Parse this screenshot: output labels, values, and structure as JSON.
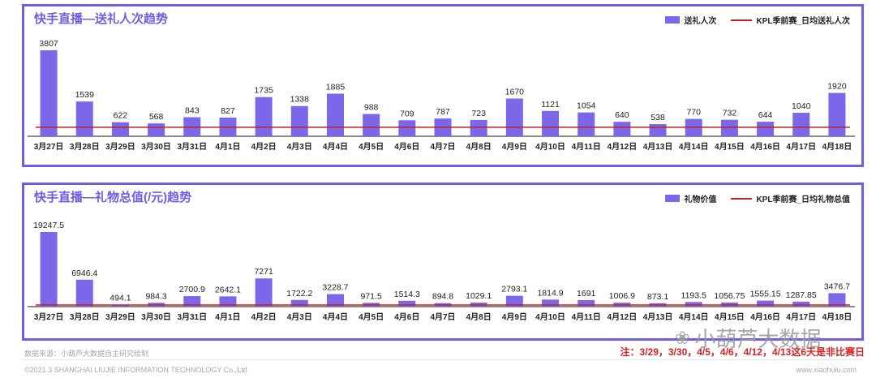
{
  "colors": {
    "bar": "#7a67ea",
    "line": "#c71f1f",
    "frame": "#6f5de8"
  },
  "chart_data": [
    {
      "type": "bar",
      "title": "快手直播—送礼人次趋势",
      "categories": [
        "3月27日",
        "3月28日",
        "3月29日",
        "3月30日",
        "3月31日",
        "4月1日",
        "4月2日",
        "4月3日",
        "4月4日",
        "4月5日",
        "4月6日",
        "4月7日",
        "4月8日",
        "4月9日",
        "4月10日",
        "4月11日",
        "4月12日",
        "4月13日",
        "4月14日",
        "4月15日",
        "4月16日",
        "4月17日",
        "4月18日"
      ],
      "series": [
        {
          "name": "送礼人次",
          "values": [
            3807,
            1539,
            622,
            568,
            843,
            827,
            1735,
            1338,
            1885,
            988,
            709,
            787,
            723,
            1670,
            1121,
            1054,
            640,
            538,
            770,
            732,
            644,
            1040,
            1920
          ]
        }
      ],
      "reference_line": {
        "name": "KPL季前赛_日均送礼人次",
        "value": 400
      },
      "value_labels": [
        "3807",
        "1539",
        "622",
        "568",
        "843",
        "827",
        "1735",
        "1338",
        "1885",
        "988",
        "709",
        "787",
        "723",
        "1670",
        "1121",
        "1054",
        "640",
        "538",
        "770",
        "732",
        "644",
        "1040",
        "1920"
      ],
      "legend": "top-right"
    },
    {
      "type": "bar",
      "title": "快手直播—礼物总值(/元)趋势",
      "categories": [
        "3月27日",
        "3月28日",
        "3月29日",
        "3月30日",
        "3月31日",
        "4月1日",
        "4月2日",
        "4月3日",
        "4月4日",
        "4月5日",
        "4月6日",
        "4月7日",
        "4月8日",
        "4月9日",
        "4月10日",
        "4月11日",
        "4月12日",
        "4月13日",
        "4月14日",
        "4月15日",
        "4月16日",
        "4月17日",
        "4月18日"
      ],
      "series": [
        {
          "name": "礼物价值",
          "values": [
            19247.5,
            6946.4,
            494.1,
            984.3,
            2700.9,
            2642.1,
            7271,
            1722.2,
            3228.7,
            971.5,
            1514.3,
            894.8,
            1029.1,
            2793.1,
            1814.9,
            1691,
            1006.9,
            873.1,
            1193.5,
            1056.75,
            1555.15,
            1287.85,
            3476.7
          ]
        }
      ],
      "reference_line": {
        "name": "KPL季前赛_日均礼物总值",
        "value": 400
      },
      "value_labels": [
        "19247.5",
        "6946.4",
        "494.1",
        "984.3",
        "2700.9",
        "2642.1",
        "7271",
        "1722.2",
        "3228.7",
        "971.5",
        "1514.3",
        "894.8",
        "1029.1",
        "2793.1",
        "1814.9",
        "1691",
        "1006.9",
        "873.1",
        "1193.5",
        "1056.75",
        "1555.15",
        "1287.85",
        "3476.7"
      ],
      "legend": "top-right"
    }
  ],
  "footer": {
    "source": "数据来源：小葫芦大数据自主研究绘制",
    "copyright": "©2021.3 SHANGHAI LIUJIE INFORMATION TECHNOLOGY Co.,Ltd",
    "site": "www.xiaohulu.com",
    "note": "注：3/29，3/30，4/5，4/6，4/12，4/13这6天是非比赛日",
    "wechat": "小葫芦大数据"
  }
}
